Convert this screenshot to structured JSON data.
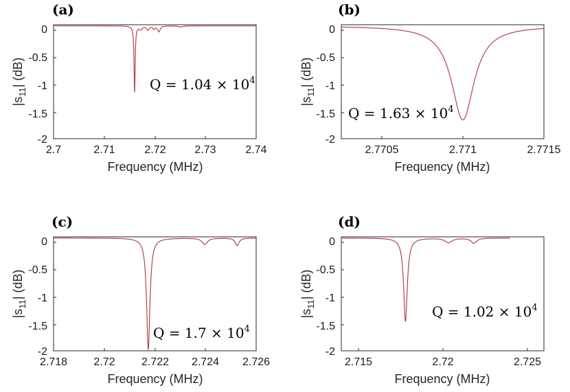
{
  "figure": {
    "panels": [
      {
        "label": "(a)",
        "q": {
          "prefix": "Q = 1.04 × 10",
          "exp": "4"
        }
      },
      {
        "label": "(b)",
        "q": {
          "prefix": "Q = 1.63 × 10",
          "exp": "4"
        }
      },
      {
        "label": "(c)",
        "q": {
          "prefix": "Q = 1.7 × 10",
          "exp": "4"
        }
      },
      {
        "label": "(d)",
        "q": {
          "prefix": "Q = 1.02 × 10",
          "exp": "4"
        }
      }
    ]
  },
  "chart_data": [
    {
      "type": "line",
      "title": "(a)",
      "xlabel": "Frequency (MHz)",
      "ylabel": "|s11| (dB)",
      "xlim": [
        2.7,
        2.74
      ],
      "ylim": [
        -2,
        0
      ],
      "xticks": [
        "2.7",
        "2.71",
        "2.72",
        "2.73",
        "2.74"
      ],
      "yticks": [
        "0",
        "-0.5",
        "-1",
        "-1.5",
        "-2"
      ],
      "annotation": "Q = 1.04 × 10^4",
      "line_color": "#b5414a",
      "baseline": -0.02,
      "peaks": [
        {
          "center": 2.716,
          "width": 0.00013,
          "depth": 1.16
        },
        {
          "center": 2.7172,
          "width": 0.00035,
          "depth": 0.06
        },
        {
          "center": 2.7186,
          "width": 0.0003,
          "depth": 0.07
        },
        {
          "center": 2.7198,
          "width": 0.00025,
          "depth": 0.05
        },
        {
          "center": 2.7208,
          "width": 0.0003,
          "depth": 0.1
        },
        {
          "center": 2.7251,
          "width": 0.0005,
          "depth": 0.02
        }
      ],
      "x_range": [
        2.7,
        2.74
      ]
    },
    {
      "type": "line",
      "title": "(b)",
      "xlabel": "Frequency (MHz)",
      "ylabel": "|s11| (dB)",
      "xlim": [
        2.77025,
        2.7715
      ],
      "ylim": [
        -2,
        0
      ],
      "xticks": [
        "2.7705",
        "2.771",
        "2.7715"
      ],
      "yticks": [
        "0",
        "-0.5",
        "-1",
        "-1.5",
        "-2"
      ],
      "annotation": "Q = 1.63 × 10^4",
      "line_color": "#b5414a",
      "baseline": -0.02,
      "peaks": [
        {
          "center": 2.771,
          "width": 8.5e-05,
          "depth": 1.65
        }
      ],
      "x_range": [
        2.77025,
        2.7715
      ]
    },
    {
      "type": "line",
      "title": "(c)",
      "xlabel": "Frequency (MHz)",
      "ylabel": "|s11| (dB)",
      "xlim": [
        2.718,
        2.726
      ],
      "ylim": [
        -2,
        0
      ],
      "xticks": [
        "2.718",
        "2.72",
        "2.722",
        "2.724",
        "2.726"
      ],
      "yticks": [
        "0",
        "-0.5",
        "-1",
        "-1.5",
        "-2"
      ],
      "annotation": "Q = 1.7 × 10^4",
      "line_color": "#b5414a",
      "baseline": -0.02,
      "peaks": [
        {
          "center": 2.72174,
          "width": 8e-05,
          "depth": 1.95
        },
        {
          "center": 2.72397,
          "width": 0.00013,
          "depth": 0.11
        },
        {
          "center": 2.72525,
          "width": 9e-05,
          "depth": 0.13
        }
      ],
      "x_range": [
        2.718,
        2.726
      ]
    },
    {
      "type": "line",
      "title": "(d)",
      "xlabel": "Frequency (MHz)",
      "ylabel": "|s11| (dB)",
      "xlim": [
        2.714,
        2.726
      ],
      "ylim": [
        -2,
        0
      ],
      "xticks": [
        "2.715",
        "2.72",
        "2.725"
      ],
      "yticks": [
        "0",
        "-0.5",
        "-1",
        "-1.5",
        "-2"
      ],
      "annotation": "Q = 1.02 × 10^4",
      "line_color": "#b5414a",
      "baseline": -0.02,
      "peaks": [
        {
          "center": 2.7178,
          "width": 0.00013,
          "depth": 1.46
        },
        {
          "center": 2.72035,
          "width": 0.00025,
          "depth": 0.08
        },
        {
          "center": 2.72185,
          "width": 0.0002,
          "depth": 0.09
        }
      ],
      "x_range": [
        2.714,
        2.724
      ]
    }
  ]
}
